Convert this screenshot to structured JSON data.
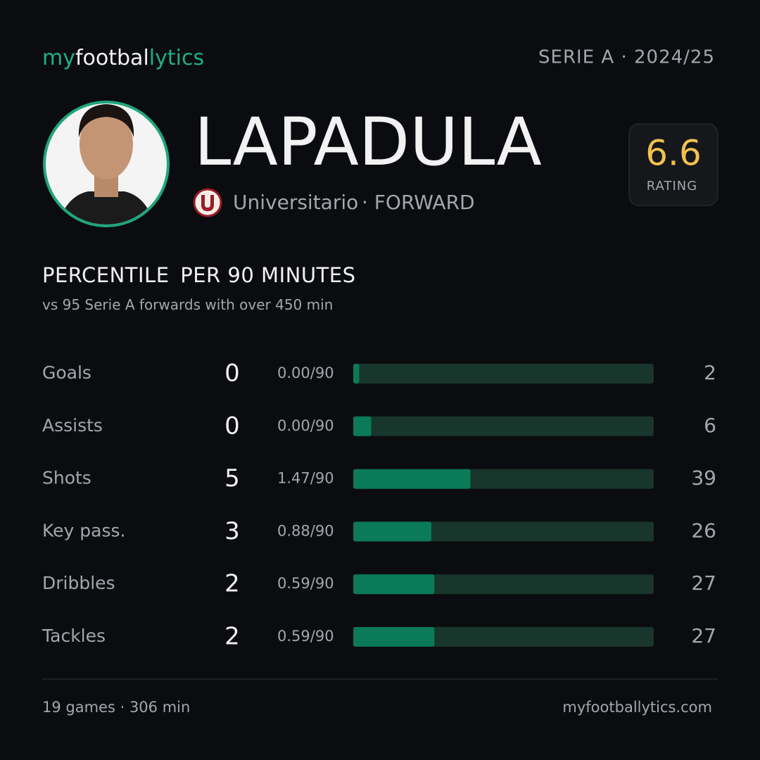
{
  "header": {
    "brand": [
      "my",
      "footbal",
      "lytics"
    ],
    "league_season": "SERIE A · 2024/25"
  },
  "player": {
    "name": "LAPADULA",
    "club": "Universitario",
    "position": "· FORWARD",
    "rating": 6.6,
    "rating_label": "RATING"
  },
  "section": {
    "title": [
      "PERCENTILE",
      "PER 90 MINUTES"
    ],
    "subtitle": [
      "vs 95 Serie A forwards",
      "with over 450 min"
    ]
  },
  "stats": {
    "xlim": [
      0,
      100
    ],
    "rows": [
      {
        "label": "Goals",
        "value": 0,
        "per90": "0.00/90",
        "percentile": 2
      },
      {
        "label": "Assists",
        "value": 0,
        "per90": "0.00/90",
        "percentile": 6
      },
      {
        "label": "Shots",
        "value": 5,
        "per90": "1.47/90",
        "percentile": 39
      },
      {
        "label": "Key pass.",
        "value": 3,
        "per90": "0.88/90",
        "percentile": 26
      },
      {
        "label": "Dribbles",
        "value": 2,
        "per90": "0.59/90",
        "percentile": 27
      },
      {
        "label": "Tackles",
        "value": 2,
        "per90": "0.59/90",
        "percentile": 27
      }
    ]
  },
  "footer": {
    "summary": "19 games · 306 min",
    "site": "myfootballytics.com"
  }
}
